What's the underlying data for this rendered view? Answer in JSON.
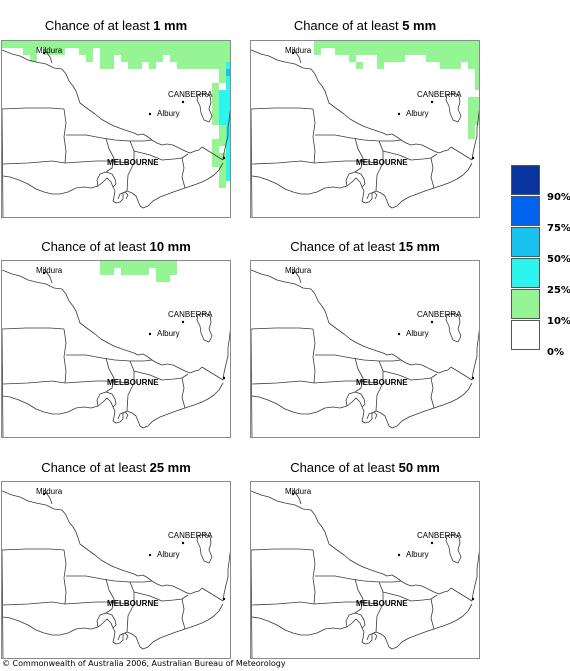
{
  "colors": {
    "band_10_25": "#95f595",
    "band_25_50": "#2cf4ee",
    "band_50_75": "#18c2ee",
    "band_75_90": "#0064f0",
    "band_90_100": "#0834a0",
    "band_0_10": "#ffffff"
  },
  "places": {
    "mildura": "Mildura",
    "canberra": "CANBERRA",
    "albury": "Albury",
    "melbourne": "MELBOURNE"
  },
  "panels": [
    {
      "prefix": "Chance of at least ",
      "amount": "1 mm",
      "coverage": [
        {
          "cells": [
            [
              0,
              0
            ],
            [
              1,
              0
            ],
            [
              2,
              0
            ],
            [
              3,
              0
            ],
            [
              4,
              0
            ],
            [
              5,
              0
            ],
            [
              6,
              0
            ],
            [
              7,
              0
            ],
            [
              8,
              0
            ],
            [
              9,
              0
            ],
            [
              10,
              0
            ],
            [
              11,
              0
            ],
            [
              12,
              0
            ],
            [
              13,
              0
            ],
            [
              14,
              0
            ],
            [
              15,
              0
            ],
            [
              16,
              0
            ],
            [
              17,
              0
            ],
            [
              18,
              0
            ],
            [
              19,
              0
            ],
            [
              20,
              0
            ],
            [
              21,
              0
            ],
            [
              22,
              0
            ],
            [
              23,
              0
            ],
            [
              24,
              0
            ],
            [
              25,
              0
            ],
            [
              26,
              0
            ],
            [
              27,
              0
            ],
            [
              28,
              0
            ],
            [
              29,
              0
            ],
            [
              30,
              0
            ],
            [
              31,
              0
            ],
            [
              32,
              0
            ],
            [
              3,
              1
            ],
            [
              4,
              1
            ],
            [
              6,
              1
            ],
            [
              7,
              1
            ],
            [
              8,
              1
            ],
            [
              11,
              1
            ],
            [
              12,
              1
            ],
            [
              14,
              1
            ],
            [
              15,
              1
            ],
            [
              16,
              1
            ],
            [
              17,
              1
            ],
            [
              18,
              1
            ],
            [
              19,
              1
            ],
            [
              20,
              1
            ],
            [
              21,
              1
            ],
            [
              22,
              1
            ],
            [
              23,
              1
            ],
            [
              24,
              1
            ],
            [
              25,
              1
            ],
            [
              26,
              1
            ],
            [
              27,
              1
            ],
            [
              28,
              1
            ],
            [
              29,
              1
            ],
            [
              30,
              1
            ],
            [
              31,
              1
            ],
            [
              32,
              1
            ],
            [
              4,
              2
            ],
            [
              12,
              2
            ],
            [
              14,
              2
            ],
            [
              15,
              2
            ],
            [
              17,
              2
            ],
            [
              18,
              2
            ],
            [
              19,
              2
            ],
            [
              20,
              2
            ],
            [
              21,
              2
            ],
            [
              22,
              2
            ],
            [
              24,
              2
            ],
            [
              25,
              2
            ],
            [
              26,
              2
            ],
            [
              27,
              2
            ],
            [
              28,
              2
            ],
            [
              29,
              2
            ],
            [
              30,
              2
            ],
            [
              31,
              2
            ],
            [
              32,
              2
            ],
            [
              14,
              3
            ],
            [
              15,
              3
            ],
            [
              18,
              3
            ],
            [
              19,
              3
            ],
            [
              21,
              3
            ],
            [
              25,
              3
            ],
            [
              26,
              3
            ],
            [
              27,
              3
            ],
            [
              28,
              3
            ],
            [
              29,
              3
            ],
            [
              30,
              3
            ],
            [
              31,
              3
            ],
            [
              32,
              3
            ],
            [
              31,
              4
            ],
            [
              32,
              4
            ],
            [
              31,
              5
            ],
            [
              30,
              6
            ],
            [
              30,
              7
            ],
            [
              30,
              8
            ],
            [
              30,
              9
            ],
            [
              30,
              10
            ],
            [
              30,
              11
            ],
            [
              31,
              12
            ],
            [
              31,
              13
            ],
            [
              30,
              14
            ],
            [
              31,
              14
            ],
            [
              30,
              15
            ],
            [
              30,
              16
            ],
            [
              31,
              16
            ],
            [
              30,
              17
            ],
            [
              31,
              17
            ],
            [
              31,
              18
            ],
            [
              31,
              19
            ],
            [
              31,
              20
            ]
          ],
          "band": "band_10_25"
        },
        {
          "cells": [
            [
              32,
              3
            ],
            [
              32,
              5
            ],
            [
              32,
              6
            ],
            [
              31,
              7
            ],
            [
              32,
              7
            ],
            [
              31,
              8
            ],
            [
              32,
              8
            ],
            [
              31,
              9
            ],
            [
              32,
              9
            ],
            [
              31,
              10
            ],
            [
              32,
              10
            ],
            [
              31,
              11
            ],
            [
              32,
              11
            ],
            [
              32,
              12
            ],
            [
              32,
              13
            ],
            [
              32,
              14
            ],
            [
              32,
              15
            ],
            [
              32,
              16
            ],
            [
              32,
              17
            ],
            [
              32,
              18
            ],
            [
              32,
              19
            ]
          ],
          "band": "band_25_50"
        },
        {
          "cells": [
            [
              32,
              4
            ]
          ],
          "band": "band_50_75"
        }
      ]
    },
    {
      "prefix": "Chance of at least ",
      "amount": "5 mm",
      "coverage": [
        {
          "cells": [
            [
              9,
              0
            ],
            [
              10,
              0
            ],
            [
              11,
              0
            ],
            [
              12,
              0
            ],
            [
              13,
              0
            ],
            [
              14,
              0
            ],
            [
              15,
              0
            ],
            [
              16,
              0
            ],
            [
              17,
              0
            ],
            [
              18,
              0
            ],
            [
              19,
              0
            ],
            [
              20,
              0
            ],
            [
              21,
              0
            ],
            [
              22,
              0
            ],
            [
              23,
              0
            ],
            [
              24,
              0
            ],
            [
              25,
              0
            ],
            [
              26,
              0
            ],
            [
              27,
              0
            ],
            [
              28,
              0
            ],
            [
              29,
              0
            ],
            [
              30,
              0
            ],
            [
              31,
              0
            ],
            [
              32,
              0
            ],
            [
              9,
              1
            ],
            [
              12,
              1
            ],
            [
              13,
              1
            ],
            [
              14,
              1
            ],
            [
              15,
              1
            ],
            [
              16,
              1
            ],
            [
              17,
              1
            ],
            [
              18,
              1
            ],
            [
              19,
              1
            ],
            [
              20,
              1
            ],
            [
              21,
              1
            ],
            [
              22,
              1
            ],
            [
              23,
              1
            ],
            [
              24,
              1
            ],
            [
              25,
              1
            ],
            [
              26,
              1
            ],
            [
              27,
              1
            ],
            [
              28,
              1
            ],
            [
              29,
              1
            ],
            [
              30,
              1
            ],
            [
              31,
              1
            ],
            [
              32,
              1
            ],
            [
              14,
              2
            ],
            [
              18,
              2
            ],
            [
              19,
              2
            ],
            [
              20,
              2
            ],
            [
              21,
              2
            ],
            [
              25,
              2
            ],
            [
              26,
              2
            ],
            [
              27,
              2
            ],
            [
              28,
              2
            ],
            [
              29,
              2
            ],
            [
              30,
              2
            ],
            [
              31,
              2
            ],
            [
              32,
              2
            ],
            [
              15,
              3
            ],
            [
              18,
              3
            ],
            [
              27,
              3
            ],
            [
              28,
              3
            ],
            [
              29,
              3
            ],
            [
              31,
              3
            ],
            [
              32,
              3
            ],
            [
              32,
              4
            ],
            [
              32,
              5
            ],
            [
              32,
              6
            ],
            [
              31,
              8
            ],
            [
              32,
              8
            ],
            [
              31,
              9
            ],
            [
              32,
              9
            ],
            [
              31,
              10
            ],
            [
              32,
              10
            ],
            [
              31,
              11
            ],
            [
              32,
              11
            ],
            [
              31,
              12
            ],
            [
              31,
              13
            ]
          ],
          "band": "band_10_25"
        }
      ]
    },
    {
      "prefix": "Chance of at least ",
      "amount": "10 mm",
      "coverage": [
        {
          "cells": [
            [
              14,
              0
            ],
            [
              15,
              0
            ],
            [
              16,
              0
            ],
            [
              17,
              0
            ],
            [
              18,
              0
            ],
            [
              19,
              0
            ],
            [
              20,
              0
            ],
            [
              21,
              0
            ],
            [
              22,
              0
            ],
            [
              23,
              0
            ],
            [
              24,
              0
            ],
            [
              14,
              1
            ],
            [
              15,
              1
            ],
            [
              17,
              1
            ],
            [
              18,
              1
            ],
            [
              19,
              1
            ],
            [
              20,
              1
            ],
            [
              22,
              1
            ],
            [
              23,
              1
            ],
            [
              24,
              1
            ],
            [
              22,
              2
            ],
            [
              23,
              2
            ]
          ],
          "band": "band_10_25"
        }
      ]
    },
    {
      "prefix": "Chance of at least ",
      "amount": "15 mm",
      "coverage": []
    },
    {
      "prefix": "Chance of at least ",
      "amount": "25 mm",
      "coverage": []
    },
    {
      "prefix": "Chance of at least ",
      "amount": "50 mm",
      "coverage": []
    }
  ],
  "legend": {
    "bands": [
      "band_90_100",
      "band_75_90",
      "band_50_75",
      "band_25_50",
      "band_10_25",
      "band_0_10"
    ],
    "labels": [
      "90%",
      "75%",
      "50%",
      "25%",
      "10%",
      "0%"
    ]
  },
  "footer": "© Commonwealth of Australia 2006, Australian Bureau of Meteorology"
}
